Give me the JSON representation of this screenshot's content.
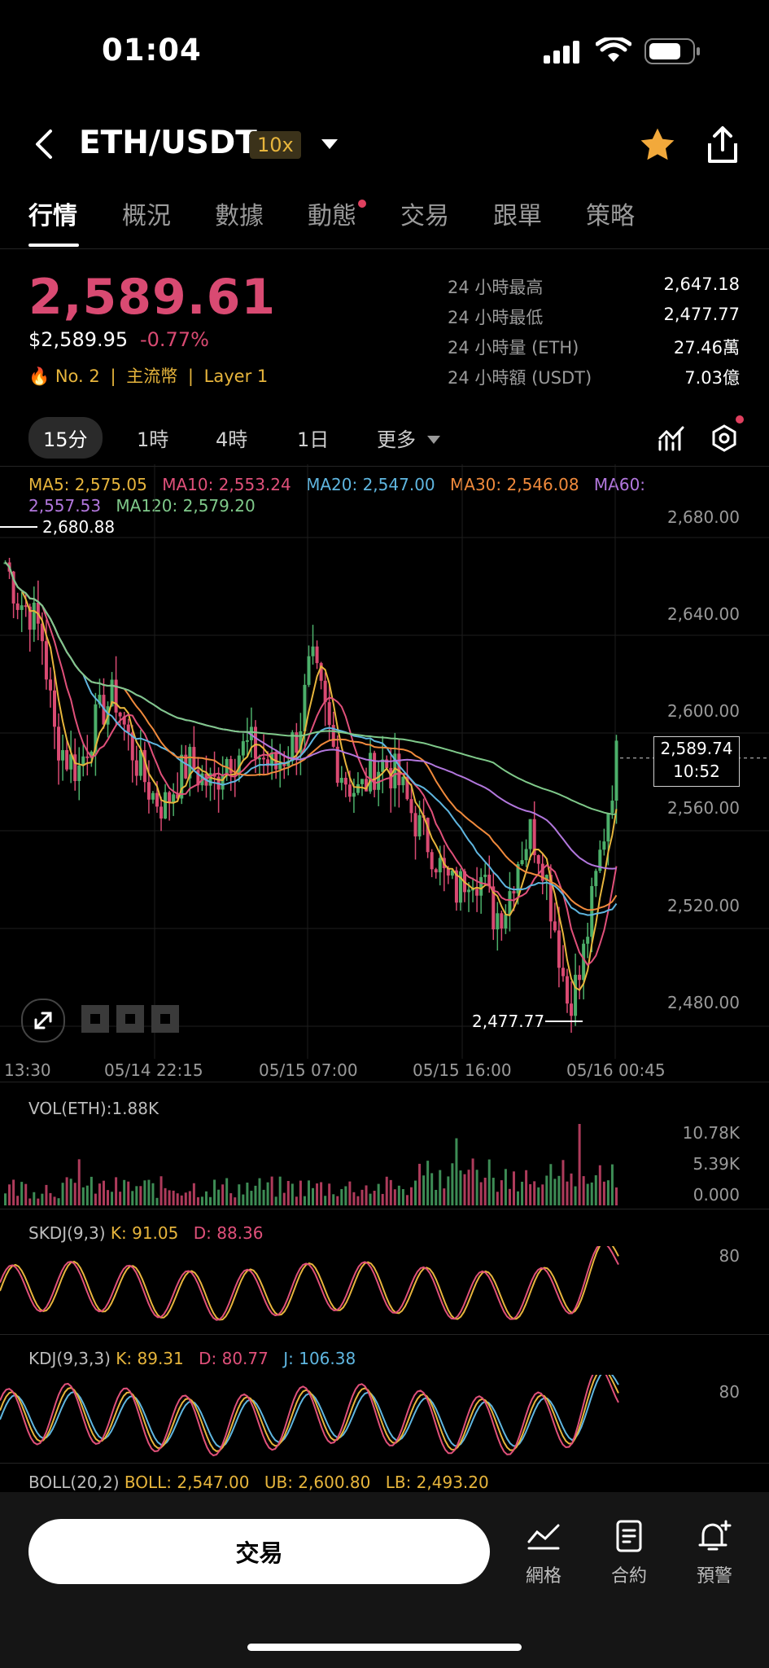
{
  "status": {
    "time": "01:04"
  },
  "header": {
    "pair": "ETH/USDT",
    "leverage": "10x"
  },
  "tabs": [
    {
      "label": "行情"
    },
    {
      "label": "概況"
    },
    {
      "label": "數據"
    },
    {
      "label": "動態"
    },
    {
      "label": "交易"
    },
    {
      "label": "跟單"
    },
    {
      "label": "策略"
    }
  ],
  "price": {
    "last": "2,589.61",
    "usd": "$2,589.95",
    "change": "-0.77%",
    "rank": "No. 2",
    "tag1": "主流幣",
    "tag2": "Layer 1"
  },
  "stats": [
    {
      "label": "24 小時最高",
      "value": "2,647.18"
    },
    {
      "label": "24 小時最低",
      "value": "2,477.77"
    },
    {
      "label": "24 小時量 (ETH)",
      "value": "27.46萬"
    },
    {
      "label": "24 小時額 (USDT)",
      "value": "7.03億"
    }
  ],
  "timeframes": [
    {
      "label": "15分"
    },
    {
      "label": "1時"
    },
    {
      "label": "4時"
    },
    {
      "label": "1日"
    },
    {
      "label": "更多"
    }
  ],
  "ma": {
    "ma5": "MA5: 2,575.05",
    "ma10": "MA10: 2,553.24",
    "ma20": "MA20: 2,547.00",
    "ma30": "MA30: 2,546.08",
    "ma60_a": "MA60:",
    "ma60_b": "2,557.53",
    "ma120": "MA120: 2,579.20"
  },
  "colors": {
    "ma5": "#e7b53c",
    "ma10": "#e0507a",
    "ma20": "#5fb6e0",
    "ma30": "#f08a3c",
    "ma60": "#b277dd",
    "ma120": "#7fc98a",
    "up": "#4caf6a",
    "down": "#d94a72"
  },
  "chart_data": {
    "type": "candlestick",
    "y_ticks": [
      "2,680.00",
      "2,640.00",
      "2,600.00",
      "2,560.00",
      "2,520.00",
      "2,480.00"
    ],
    "x_ticks": [
      "13:30",
      "05/14 22:15",
      "05/15 07:00",
      "05/15 16:00",
      "05/16 00:45"
    ],
    "high_label": "2,680.88",
    "low_label": "2,477.77",
    "current_price": "2,589.74",
    "countdown": "10:52",
    "ylim": [
      2470,
      2690
    ],
    "close_path": [
      2670,
      2655,
      2650,
      2640,
      2600,
      2590,
      2585,
      2600,
      2610,
      2615,
      2598,
      2585,
      2575,
      2570,
      2580,
      2588,
      2582,
      2578,
      2590,
      2592,
      2595,
      2590,
      2585,
      2592,
      2600,
      2630,
      2612,
      2590,
      2580,
      2575,
      2585,
      2588,
      2582,
      2570,
      2560,
      2552,
      2540,
      2535,
      2545,
      2540,
      2525,
      2530,
      2550,
      2560,
      2548,
      2520,
      2490,
      2500,
      2530,
      2560,
      2590
    ]
  },
  "volume": {
    "label": "VOL(ETH):1.88K",
    "ticks": [
      "10.78K",
      "5.39K",
      "0.000"
    ]
  },
  "skdj": {
    "label": "SKDJ(9,3)",
    "k": "K: 91.05",
    "d": "D: 88.36",
    "tick": "80"
  },
  "kdj": {
    "label": "KDJ(9,3,3)",
    "k": "K: 89.31",
    "d": "D: 80.77",
    "j": "J: 106.38",
    "tick": "80"
  },
  "boll": {
    "label": "BOLL(20,2)",
    "boll": "BOLL: 2,547.00",
    "ub": "UB: 2,600.80",
    "lb": "LB: 2,493.20"
  },
  "bottom": {
    "trade": "交易",
    "grid": "網格",
    "contract": "合約",
    "alert": "預警"
  }
}
